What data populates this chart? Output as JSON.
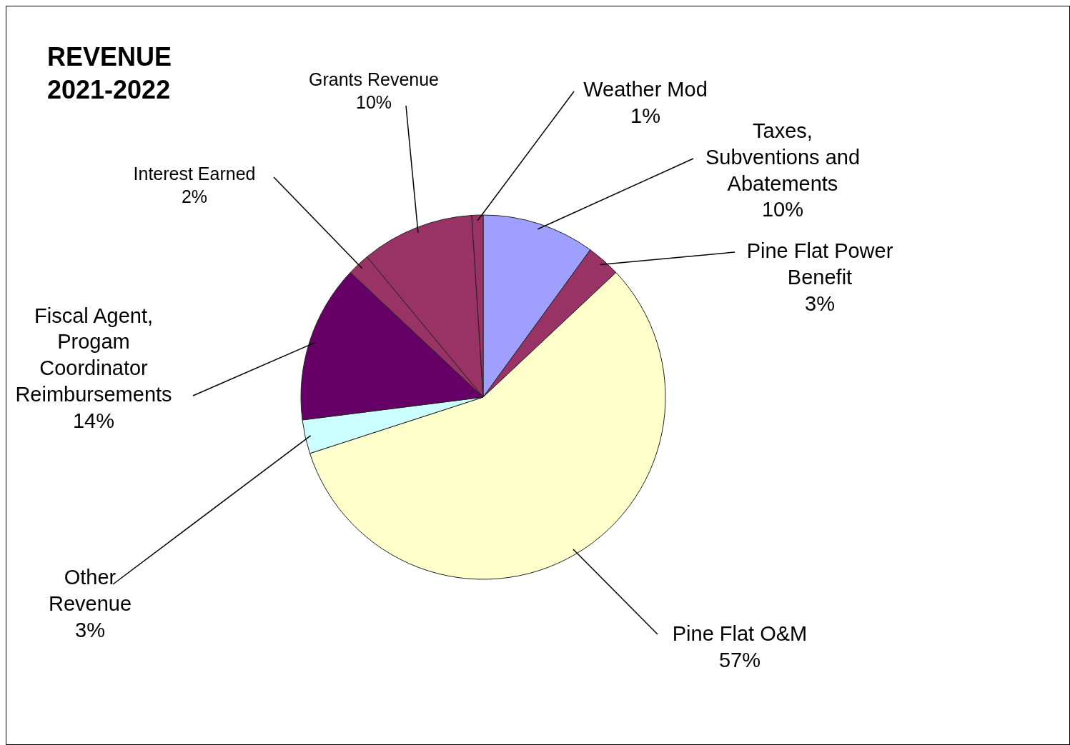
{
  "chart_data": {
    "type": "pie",
    "title": "REVENUE 2021-2022",
    "categories": [
      "Taxes, Subventions and Abatements",
      "Pine Flat Power Benefit",
      "Pine Flat O&M",
      "Other Revenue",
      "Fiscal Agent, Progam Coordinator Reimbursements",
      "Interest Earned",
      "Grants Revenue",
      "Weather Mod"
    ],
    "values": [
      10,
      3,
      57,
      3,
      14,
      2,
      10,
      1
    ],
    "value_labels": [
      "10%",
      "3%",
      "57%",
      "3%",
      "14%",
      "2%",
      "10%",
      "1%"
    ],
    "colors": [
      "#9f9fff",
      "#993366",
      "#ffffcc",
      "#ccffff",
      "#660066",
      "#993366",
      "#993366",
      "#993366"
    ]
  }
}
